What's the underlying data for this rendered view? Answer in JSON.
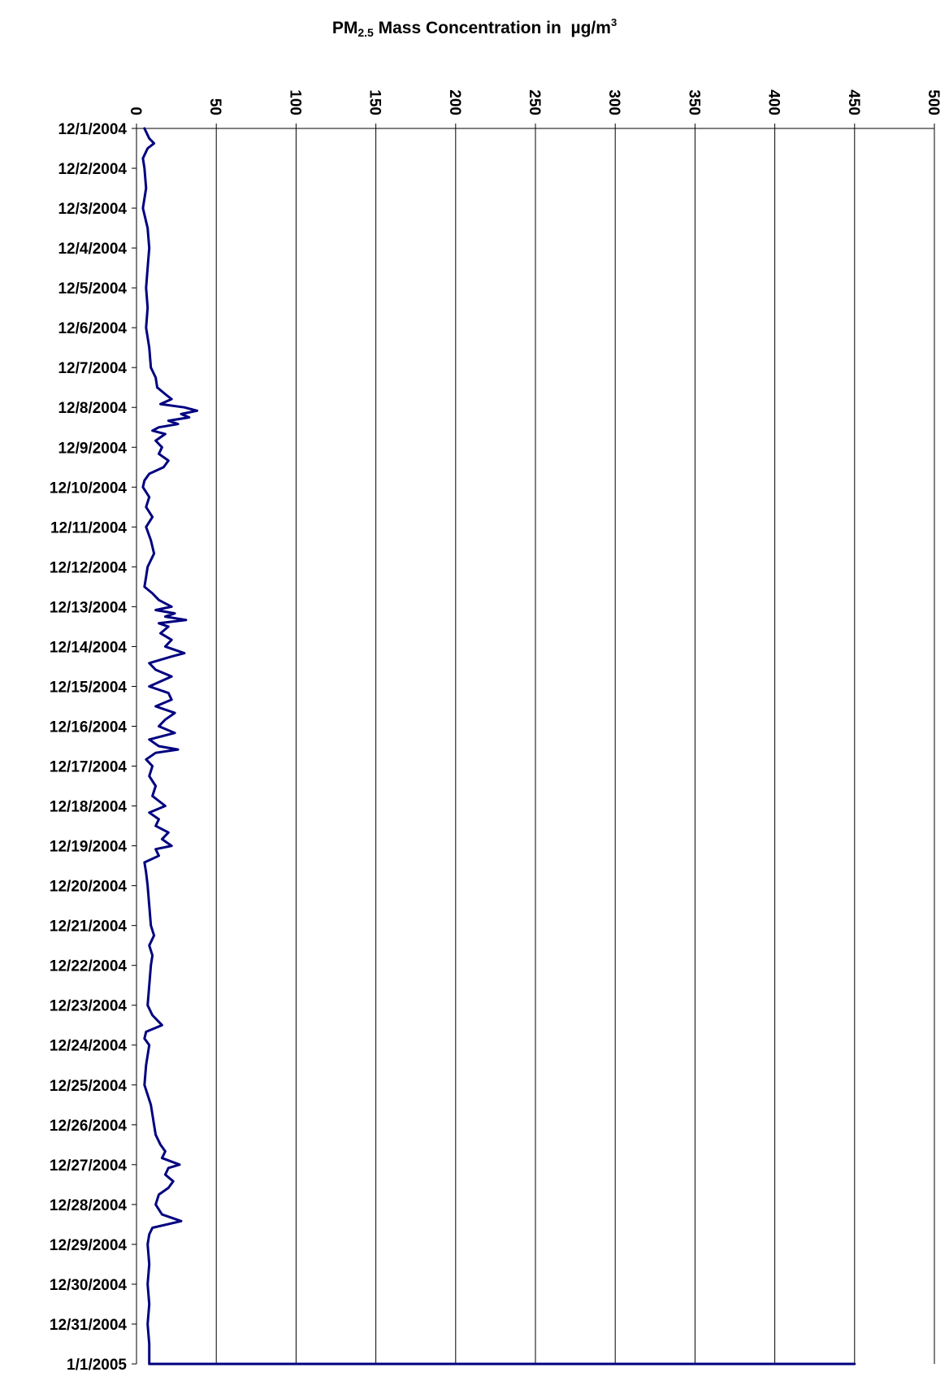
{
  "chart_data": {
    "type": "line",
    "orientation": "value axis horizontal on top, date axis vertical",
    "title": {
      "prefix": "PM",
      "subscript": "2.5",
      "middle": " Mass Concentration in  ",
      "mu": "µ",
      "unit": "g/m",
      "superscript": "3"
    },
    "xlim": [
      0,
      500
    ],
    "x_ticks": [
      "0",
      "50",
      "100",
      "150",
      "200",
      "250",
      "300",
      "350",
      "400",
      "450",
      "500"
    ],
    "y_ticks": [
      "12/1/2004",
      "12/2/2004",
      "12/3/2004",
      "12/4/2004",
      "12/5/2004",
      "12/6/2004",
      "12/7/2004",
      "12/8/2004",
      "12/9/2004",
      "12/10/2004",
      "12/11/2004",
      "12/12/2004",
      "12/13/2004",
      "12/14/2004",
      "12/15/2004",
      "12/16/2004",
      "12/17/2004",
      "12/18/2004",
      "12/19/2004",
      "12/20/2004",
      "12/21/2004",
      "12/22/2004",
      "12/23/2004",
      "12/24/2004",
      "12/25/2004",
      "12/26/2004",
      "12/27/2004",
      "12/28/2004",
      "12/29/2004",
      "12/30/2004",
      "12/31/2004",
      "1/1/2005"
    ],
    "grid": "vertical gridlines",
    "line_color": "#000080",
    "series": [
      {
        "values": [
          [
            "12/1/2004",
            5
          ],
          [
            "12/1/2004 06:00",
            8
          ],
          [
            "12/1/2004 09:00",
            11
          ],
          [
            "12/1/2004 12:00",
            7
          ],
          [
            "12/1/2004 18:00",
            4
          ],
          [
            "12/2/2004",
            5
          ],
          [
            "12/2/2004 12:00",
            6
          ],
          [
            "12/3/2004",
            4
          ],
          [
            "12/3/2004 12:00",
            7
          ],
          [
            "12/4/2004",
            8
          ],
          [
            "12/4/2004 12:00",
            7
          ],
          [
            "12/5/2004",
            6
          ],
          [
            "12/5/2004 12:00",
            7
          ],
          [
            "12/6/2004",
            6
          ],
          [
            "12/6/2004 12:00",
            8
          ],
          [
            "12/7/2004",
            9
          ],
          [
            "12/7/2004 06:00",
            12
          ],
          [
            "12/7/2004 12:00",
            13
          ],
          [
            "12/7/2004 16:00",
            18
          ],
          [
            "12/7/2004 19:00",
            22
          ],
          [
            "12/7/2004 22:00",
            15
          ],
          [
            "12/8/2004",
            30
          ],
          [
            "12/8/2004 02:00",
            38
          ],
          [
            "12/8/2004 04:00",
            28
          ],
          [
            "12/8/2004 06:00",
            33
          ],
          [
            "12/8/2004 08:00",
            20
          ],
          [
            "12/8/2004 10:00",
            26
          ],
          [
            "12/8/2004 12:00",
            14
          ],
          [
            "12/8/2004 14:00",
            10
          ],
          [
            "12/8/2004 16:00",
            18
          ],
          [
            "12/8/2004 20:00",
            12
          ],
          [
            "12/9/2004",
            16
          ],
          [
            "12/9/2004 04:00",
            14
          ],
          [
            "12/9/2004 08:00",
            20
          ],
          [
            "12/9/2004 12:00",
            17
          ],
          [
            "12/9/2004 16:00",
            8
          ],
          [
            "12/9/2004 20:00",
            5
          ],
          [
            "12/10/2004",
            4
          ],
          [
            "12/10/2004 06:00",
            8
          ],
          [
            "12/10/2004 12:00",
            6
          ],
          [
            "12/10/2004 18:00",
            10
          ],
          [
            "12/11/2004",
            6
          ],
          [
            "12/11/2004 08:00",
            9
          ],
          [
            "12/11/2004 16:00",
            11
          ],
          [
            "12/12/2004",
            7
          ],
          [
            "12/12/2004 06:00",
            6
          ],
          [
            "12/12/2004 12:00",
            5
          ],
          [
            "12/12/2004 16:00",
            10
          ],
          [
            "12/12/2004 20:00",
            14
          ],
          [
            "12/13/2004",
            22
          ],
          [
            "12/13/2004 02:00",
            12
          ],
          [
            "12/13/2004 04:00",
            24
          ],
          [
            "12/13/2004 06:00",
            18
          ],
          [
            "12/13/2004 08:00",
            31
          ],
          [
            "12/13/2004 10:00",
            14
          ],
          [
            "12/13/2004 12:00",
            20
          ],
          [
            "12/13/2004 16:00",
            15
          ],
          [
            "12/13/2004 20:00",
            22
          ],
          [
            "12/14/2004",
            18
          ],
          [
            "12/14/2004 04:00",
            30
          ],
          [
            "12/14/2004 06:00",
            22
          ],
          [
            "12/14/2004 10:00",
            8
          ],
          [
            "12/14/2004 14:00",
            12
          ],
          [
            "12/14/2004 18:00",
            22
          ],
          [
            "12/15/2004",
            8
          ],
          [
            "12/15/2004 04:00",
            20
          ],
          [
            "12/15/2004 08:00",
            22
          ],
          [
            "12/15/2004 12:00",
            12
          ],
          [
            "12/15/2004 16:00",
            24
          ],
          [
            "12/15/2004 20:00",
            18
          ],
          [
            "12/16/2004",
            14
          ],
          [
            "12/16/2004 04:00",
            24
          ],
          [
            "12/16/2004 08:00",
            8
          ],
          [
            "12/16/2004 12:00",
            14
          ],
          [
            "12/16/2004 14:00",
            26
          ],
          [
            "12/16/2004 16:00",
            12
          ],
          [
            "12/16/2004 20:00",
            6
          ],
          [
            "12/17/2004",
            10
          ],
          [
            "12/17/2004 06:00",
            8
          ],
          [
            "12/17/2004 12:00",
            12
          ],
          [
            "12/17/2004 18:00",
            10
          ],
          [
            "12/18/2004",
            18
          ],
          [
            "12/18/2004 04:00",
            8
          ],
          [
            "12/18/2004 08:00",
            14
          ],
          [
            "12/18/2004 12:00",
            12
          ],
          [
            "12/18/2004 16:00",
            20
          ],
          [
            "12/18/2004 20:00",
            16
          ],
          [
            "12/19/2004",
            22
          ],
          [
            "12/19/2004 02:00",
            12
          ],
          [
            "12/19/2004 06:00",
            14
          ],
          [
            "12/19/2004 10:00",
            5
          ],
          [
            "12/19/2004 16:00",
            6
          ],
          [
            "12/20/2004",
            7
          ],
          [
            "12/20/2004 12:00",
            8
          ],
          [
            "12/21/2004",
            9
          ],
          [
            "12/21/2004 06:00",
            11
          ],
          [
            "12/21/2004 12:00",
            8
          ],
          [
            "12/21/2004 18:00",
            10
          ],
          [
            "12/22/2004",
            9
          ],
          [
            "12/22/2004 12:00",
            8
          ],
          [
            "12/23/2004",
            7
          ],
          [
            "12/23/2004 06:00",
            10
          ],
          [
            "12/23/2004 12:00",
            16
          ],
          [
            "12/23/2004 16:00",
            6
          ],
          [
            "12/23/2004 20:00",
            5
          ],
          [
            "12/24/2004",
            8
          ],
          [
            "12/24/2004 12:00",
            6
          ],
          [
            "12/25/2004",
            5
          ],
          [
            "12/25/2004 12:00",
            9
          ],
          [
            "12/26/2004",
            11
          ],
          [
            "12/26/2004 06:00",
            12
          ],
          [
            "12/26/2004 12:00",
            15
          ],
          [
            "12/26/2004 16:00",
            18
          ],
          [
            "12/26/2004 20:00",
            16
          ],
          [
            "12/27/2004",
            27
          ],
          [
            "12/27/2004 02:00",
            20
          ],
          [
            "12/27/2004 06:00",
            18
          ],
          [
            "12/27/2004 10:00",
            23
          ],
          [
            "12/27/2004 14:00",
            20
          ],
          [
            "12/27/2004 18:00",
            14
          ],
          [
            "12/28/2004",
            12
          ],
          [
            "12/28/2004 06:00",
            16
          ],
          [
            "12/28/2004 10:00",
            28
          ],
          [
            "12/28/2004 14:00",
            10
          ],
          [
            "12/28/2004 18:00",
            8
          ],
          [
            "12/29/2004",
            7
          ],
          [
            "12/29/2004 12:00",
            8
          ],
          [
            "12/30/2004",
            7
          ],
          [
            "12/30/2004 12:00",
            8
          ],
          [
            "12/31/2004",
            7
          ],
          [
            "12/31/2004 12:00",
            8
          ],
          [
            "1/1/2005",
            8
          ],
          [
            "1/1/2005",
            450
          ]
        ]
      }
    ]
  }
}
